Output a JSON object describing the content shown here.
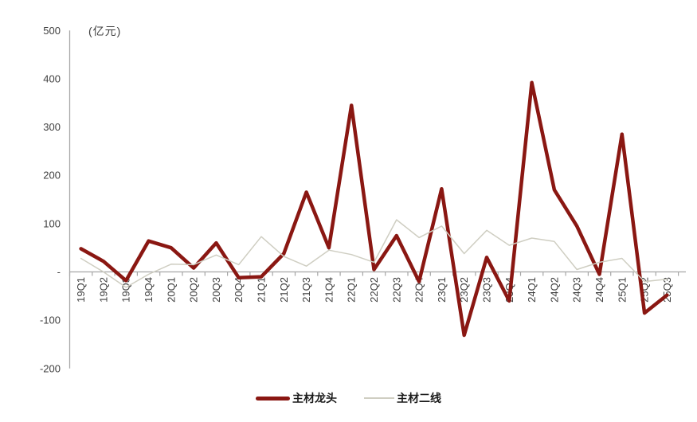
{
  "chart_data": {
    "type": "line",
    "unit_label": "(亿元)",
    "categories": [
      "19Q1",
      "19Q2",
      "19Q3",
      "19Q4",
      "20Q1",
      "20Q2",
      "20Q3",
      "20Q4",
      "21Q1",
      "21Q2",
      "21Q3",
      "21Q4",
      "22Q1",
      "22Q2",
      "22Q3",
      "22Q4",
      "23Q1",
      "23Q2",
      "23Q3",
      "23Q4",
      "24Q1",
      "24Q2",
      "24Q3",
      "24Q4",
      "25Q1",
      "25Q2",
      "25Q3"
    ],
    "series": [
      {
        "name": "主材龙头",
        "color": "#8a1712",
        "stroke_width": 4.5,
        "values": [
          48,
          22,
          -18,
          64,
          50,
          8,
          60,
          -12,
          -10,
          38,
          165,
          50,
          345,
          5,
          75,
          -20,
          172,
          -131,
          30,
          -60,
          392,
          170,
          95,
          -5,
          285,
          -85,
          -48
        ]
      },
      {
        "name": "主材二线",
        "color": "#cfcec2",
        "stroke_width": 1.5,
        "values": [
          28,
          0,
          -32,
          -5,
          16,
          15,
          35,
          15,
          73,
          32,
          12,
          45,
          36,
          20,
          108,
          71,
          95,
          38,
          86,
          55,
          70,
          63,
          5,
          20,
          28,
          -20,
          -15
        ]
      }
    ],
    "ylim": [
      -200,
      500
    ],
    "ytick_values": [
      500,
      400,
      300,
      200,
      100,
      0,
      -100,
      -200
    ],
    "ytick_labels": [
      "500",
      "400",
      "300",
      "200",
      "100",
      "-",
      "-100",
      "-200"
    ],
    "grid": "zero-line-only",
    "legend_position": "bottom-center",
    "axis_color": "#a6a6a6",
    "tick_label_color": "#3f3f3f",
    "x_label_rotation": -90
  }
}
